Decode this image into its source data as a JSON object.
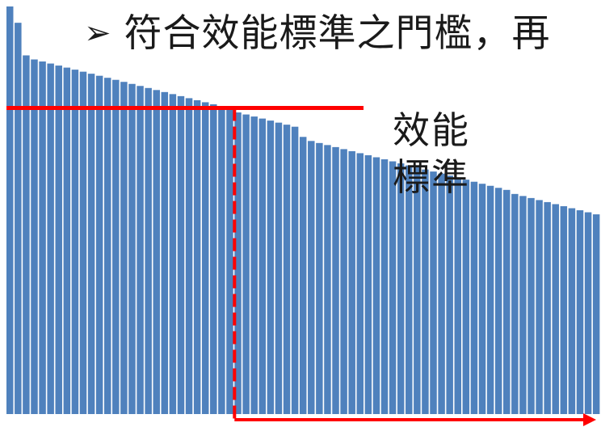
{
  "headline": {
    "bullet": "➢",
    "text": "符合效能標準之門檻，再"
  },
  "standard_label": {
    "line1": "效能",
    "line2": "標準"
  },
  "colors": {
    "bar": "#4f81bd",
    "bar_edge": "#ffffff",
    "standard_line": "#ff0000",
    "background": "#ffffff"
  },
  "chart_data": {
    "type": "bar",
    "title": "",
    "xlabel": "",
    "ylabel": "",
    "axes_visible": false,
    "grid": false,
    "ylim": [
      0,
      100
    ],
    "values": [
      100,
      96,
      88,
      87,
      86.5,
      86,
      85.5,
      85,
      84.5,
      84,
      83.5,
      83,
      82.5,
      82,
      81.5,
      81,
      80.5,
      80,
      79.5,
      79,
      78.5,
      78,
      77.5,
      77,
      76.5,
      76,
      75.5,
      75,
      74,
      73.5,
      73,
      72.5,
      72,
      71.5,
      71,
      70.5,
      68,
      67,
      66.5,
      66,
      65.5,
      65,
      64.5,
      64,
      63.5,
      63,
      62.5,
      62,
      61.5,
      61,
      60.5,
      60,
      59.5,
      59,
      58.5,
      58,
      57.5,
      57,
      56.5,
      56,
      55.5,
      55,
      54,
      53.5,
      53,
      52.5,
      52,
      51.5,
      51,
      50.5,
      50,
      49.5,
      49
    ],
    "standard_threshold": 75.5,
    "threshold_crossing_index": 28
  }
}
